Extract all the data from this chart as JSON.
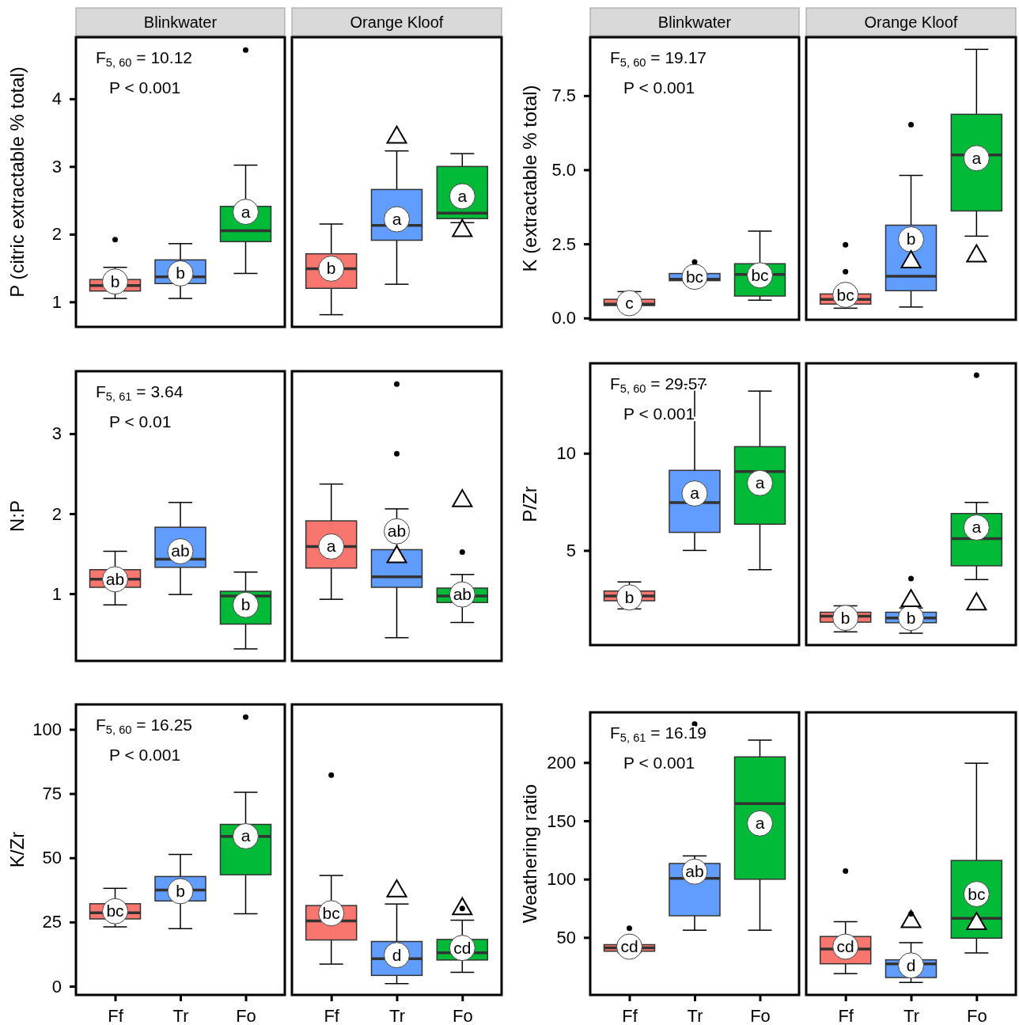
{
  "chart_data": [
    {
      "type": "box",
      "title": "Blinkwater",
      "ylabel": "P (citric extractable % total)",
      "categories": [
        "Ff",
        "Tr",
        "Fo"
      ],
      "colors": [
        "#f8766d",
        "#619cff",
        "#00ba38"
      ],
      "ylim": [
        0.63,
        4.91
      ],
      "yticks": [
        1,
        2,
        3,
        4
      ],
      "tick_labels": "y",
      "boxes": [
        {
          "low": 1.05,
          "q1": 1.16,
          "median": 1.24,
          "q3": 1.33,
          "high": 1.51,
          "outliers": [
            1.92
          ]
        },
        {
          "low": 1.05,
          "q1": 1.27,
          "median": 1.37,
          "q3": 1.62,
          "high": 1.86
        },
        {
          "low": 1.42,
          "q1": 1.89,
          "median": 2.05,
          "q3": 2.41,
          "high": 3.02,
          "outliers": [
            4.72
          ]
        }
      ],
      "annotations": [
        "F$_{5, 60}$ = 10.12",
        "P < 0.001",
        {
          "text": "b",
          "x": "Ff",
          "y": 1.3
        },
        {
          "text": "b",
          "x": "Tr",
          "y": 1.42
        },
        {
          "text": "a",
          "x": "Fo",
          "y": 2.33
        }
      ]
    },
    {
      "type": "box",
      "title": "Orange Kloof",
      "categories": [
        "Ff",
        "Tr",
        "Fo"
      ],
      "colors": [
        "#f8766d",
        "#619cff",
        "#00ba38"
      ],
      "ylim": [
        0.63,
        4.91
      ],
      "tick_labels": false,
      "boxes": [
        {
          "low": 0.81,
          "q1": 1.2,
          "median": 1.49,
          "q3": 1.71,
          "high": 2.15
        },
        {
          "low": 1.26,
          "q1": 1.91,
          "median": 2.13,
          "q3": 2.66,
          "high": 3.23
        },
        {
          "low": 2.17,
          "q1": 2.23,
          "median": 2.31,
          "q3": 3.0,
          "high": 3.19
        }
      ],
      "series": [
        {
          "type": "scatter",
          "marker": "triangle",
          "color": "#000000",
          "x": [
            "Tr",
            "Fo"
          ],
          "values": [
            3.43,
            2.05
          ]
        }
      ],
      "annotations": [
        {
          "text": "b",
          "x": "Ff",
          "y": 1.49
        },
        {
          "text": "a",
          "x": "Tr",
          "y": 2.22
        },
        {
          "text": "a",
          "x": "Fo",
          "y": 2.56
        }
      ]
    },
    {
      "type": "box",
      "title": "Blinkwater",
      "ylabel": "K (extractable % total)",
      "categories": [
        "Ff",
        "Tr",
        "Fo"
      ],
      "colors": [
        "#f8766d",
        "#619cff",
        "#00ba38"
      ],
      "ylim": [
        -0.06,
        9.47
      ],
      "yticks": [
        {
          "value": 0,
          "label": "0.0"
        },
        2.5,
        {
          "value": 5,
          "label": "5.0"
        },
        7.5
      ],
      "tick_labels": "y",
      "boxes": [
        {
          "low": 0.4,
          "q1": 0.42,
          "median": 0.47,
          "q3": 0.63,
          "high": 0.89
        },
        {
          "low": 1.2,
          "q1": 1.26,
          "median": 1.31,
          "q3": 1.5,
          "high": 1.55,
          "outliers": [
            1.89
          ]
        },
        {
          "low": 0.6,
          "q1": 0.74,
          "median": 1.47,
          "q3": 1.83,
          "high": 2.93
        }
      ],
      "annotations": [
        "F$_{5, 60}$ = 19.17",
        "P < 0.001",
        {
          "text": "c",
          "x": "Ff",
          "y": 0.5
        },
        {
          "text": "bc",
          "x": "Tr",
          "y": 1.39
        },
        {
          "text": "bc",
          "x": "Fo",
          "y": 1.44
        }
      ]
    },
    {
      "type": "box",
      "title": "Orange Kloof",
      "categories": [
        "Ff",
        "Tr",
        "Fo"
      ],
      "colors": [
        "#f8766d",
        "#619cff",
        "#00ba38"
      ],
      "ylim": [
        -0.06,
        9.47
      ],
      "tick_labels": false,
      "boxes": [
        {
          "low": 0.33,
          "q1": 0.47,
          "median": 0.63,
          "q3": 0.81,
          "high": 0.85,
          "outliers": [
            1.56,
            2.47
          ]
        },
        {
          "low": 0.37,
          "q1": 0.92,
          "median": 1.41,
          "q3": 3.13,
          "high": 4.81,
          "outliers": [
            6.52
          ]
        },
        {
          "low": 2.76,
          "q1": 3.61,
          "median": 5.5,
          "q3": 6.87,
          "high": 9.06
        }
      ],
      "series": [
        {
          "type": "scatter",
          "marker": "triangle",
          "color": "#000000",
          "x": [
            "Tr",
            "Fo"
          ],
          "values": [
            1.89,
            2.09
          ]
        }
      ],
      "annotations": [
        {
          "text": "bc",
          "x": "Ff",
          "y": 0.78
        },
        {
          "text": "b",
          "x": "Tr",
          "y": 2.65
        },
        {
          "text": "a",
          "x": "Fo",
          "y": 5.39
        }
      ]
    },
    {
      "type": "box",
      "ylabel": "N:P",
      "categories": [
        "Ff",
        "Tr",
        "Fo"
      ],
      "colors": [
        "#f8766d",
        "#619cff",
        "#00ba38"
      ],
      "ylim": [
        0.16,
        3.78
      ],
      "yticks": [
        1,
        2,
        3
      ],
      "tick_labels": "y",
      "boxes": [
        {
          "low": 0.86,
          "q1": 1.08,
          "median": 1.18,
          "q3": 1.3,
          "high": 1.53
        },
        {
          "low": 0.99,
          "q1": 1.33,
          "median": 1.43,
          "q3": 1.83,
          "high": 2.14
        },
        {
          "low": 0.31,
          "q1": 0.62,
          "median": 0.97,
          "q3": 1.03,
          "high": 1.27
        }
      ],
      "annotations": [
        "F$_{5, 61}$ = 3.64",
        "P < 0.01",
        {
          "text": "ab",
          "x": "Ff",
          "y": 1.18
        },
        {
          "text": "ab",
          "x": "Tr",
          "y": 1.53
        },
        {
          "text": "b",
          "x": "Fo",
          "y": 0.86
        }
      ]
    },
    {
      "type": "box",
      "categories": [
        "Ff",
        "Tr",
        "Fo"
      ],
      "colors": [
        "#f8766d",
        "#619cff",
        "#00ba38"
      ],
      "ylim": [
        0.16,
        3.78
      ],
      "tick_labels": false,
      "boxes": [
        {
          "low": 0.93,
          "q1": 1.32,
          "median": 1.59,
          "q3": 1.91,
          "high": 2.37
        },
        {
          "low": 0.45,
          "q1": 1.08,
          "median": 1.21,
          "q3": 1.55,
          "high": 2.06,
          "outliers": [
            2.75,
            3.62
          ]
        },
        {
          "low": 0.64,
          "q1": 0.89,
          "median": 0.97,
          "q3": 1.07,
          "high": 1.24,
          "outliers": [
            1.52
          ]
        }
      ],
      "series": [
        {
          "type": "scatter",
          "marker": "triangle",
          "color": "#000000",
          "x": [
            "Tr",
            "Fo"
          ],
          "values": [
            1.46,
            2.16
          ]
        }
      ],
      "annotations": [
        {
          "text": "a",
          "x": "Ff",
          "y": 1.59
        },
        {
          "text": "ab",
          "x": "Tr",
          "y": 1.78
        },
        {
          "text": "ab",
          "x": "Fo",
          "y": 0.99
        }
      ]
    },
    {
      "type": "box",
      "ylabel": "P/Zr",
      "categories": [
        "Ff",
        "Tr",
        "Fo"
      ],
      "colors": [
        "#f8766d",
        "#619cff",
        "#00ba38"
      ],
      "ylim": [
        0.13,
        14.63
      ],
      "yticks": [
        5,
        10
      ],
      "tick_labels": "y",
      "boxes": [
        {
          "low": 1.99,
          "q1": 2.41,
          "median": 2.66,
          "q3": 2.91,
          "high": 3.38
        },
        {
          "low": 5.0,
          "q1": 5.93,
          "median": 7.46,
          "q3": 9.12,
          "high": 13.54
        },
        {
          "low": 4.01,
          "q1": 6.35,
          "median": 9.06,
          "q3": 10.34,
          "high": 13.2
        }
      ],
      "annotations": [
        "F$_{5, 60}$ = 29.57",
        "P < 0.001",
        {
          "text": "b",
          "x": "Ff",
          "y": 2.58
        },
        {
          "text": "a",
          "x": "Tr",
          "y": 7.93
        },
        {
          "text": "a",
          "x": "Fo",
          "y": 8.47
        }
      ]
    },
    {
      "type": "box",
      "categories": [
        "Ff",
        "Tr",
        "Fo"
      ],
      "colors": [
        "#f8766d",
        "#619cff",
        "#00ba38"
      ],
      "ylim": [
        0.13,
        14.63
      ],
      "tick_labels": false,
      "boxes": [
        {
          "low": 0.81,
          "q1": 1.31,
          "median": 1.62,
          "q3": 1.82,
          "high": 2.15
        },
        {
          "low": 0.74,
          "q1": 1.28,
          "median": 1.53,
          "q3": 1.82,
          "high": 2.04,
          "outliers": [
            3.55
          ]
        },
        {
          "low": 3.5,
          "q1": 4.21,
          "median": 5.61,
          "q3": 6.9,
          "high": 7.47,
          "outliers": [
            14.02
          ]
        }
      ],
      "series": [
        {
          "type": "scatter",
          "marker": "triangle",
          "color": "#000000",
          "x": [
            "Tr",
            "Fo"
          ],
          "values": [
            2.41,
            2.24
          ]
        }
      ],
      "annotations": [
        {
          "text": "b",
          "x": "Ff",
          "y": 1.53
        },
        {
          "text": "b",
          "x": "Tr",
          "y": 1.53
        },
        {
          "text": "a",
          "x": "Fo",
          "y": 6.18
        }
      ]
    },
    {
      "type": "box",
      "ylabel": "K/Zr",
      "categories": [
        "Ff",
        "Tr",
        "Fo"
      ],
      "colors": [
        "#f8766d",
        "#619cff",
        "#00ba38"
      ],
      "ylim": [
        -3.4,
        109.7
      ],
      "yticks": [
        0,
        25,
        50,
        75,
        100
      ],
      "boxes": [
        {
          "low": 23.1,
          "q1": 26.2,
          "median": 28.6,
          "q3": 32.1,
          "high": 38.1
        },
        {
          "low": 22.4,
          "q1": 33.2,
          "median": 37.4,
          "q3": 42.7,
          "high": 51.3
        },
        {
          "low": 28.2,
          "q1": 43.4,
          "median": 58.3,
          "q3": 63.0,
          "high": 75.5,
          "outliers": [
            104.8
          ]
        }
      ],
      "annotations": [
        "F$_{5, 60}$ = 16.25",
        "P < 0.001",
        {
          "text": "bc",
          "x": "Ff",
          "y": 29.2
        },
        {
          "text": "b",
          "x": "Tr",
          "y": 37
        },
        {
          "text": "a",
          "x": "Fo",
          "y": 58.4
        }
      ]
    },
    {
      "type": "box",
      "categories": [
        "Ff",
        "Tr",
        "Fo"
      ],
      "colors": [
        "#f8766d",
        "#619cff",
        "#00ba38"
      ],
      "ylim": [
        -3.4,
        109.7
      ],
      "tick_labels": "x",
      "boxes": [
        {
          "low": 8.6,
          "q1": 18.0,
          "median": 25.4,
          "q3": 31.4,
          "high": 43.1,
          "outliers": [
            82.2
          ]
        },
        {
          "low": 1.0,
          "q1": 4.2,
          "median": 10.7,
          "q3": 17.4,
          "high": 32.0
        },
        {
          "low": 5.4,
          "q1": 10.2,
          "median": 13.0,
          "q3": 18.2,
          "high": 25.7,
          "outliers": [
            30.3
          ]
        }
      ],
      "series": [
        {
          "type": "scatter",
          "marker": "triangle",
          "color": "#000000",
          "x": [
            "Tr",
            "Fo"
          ],
          "values": [
            37,
            30.1
          ]
        }
      ],
      "annotations": [
        {
          "text": "bc",
          "x": "Ff",
          "y": 28.4
        },
        {
          "text": "d",
          "x": "Tr",
          "y": 12.1
        },
        {
          "text": "cd",
          "x": "Fo",
          "y": 14.9
        }
      ]
    },
    {
      "type": "box",
      "ylabel": "Weathering ratio",
      "categories": [
        "Ff",
        "Tr",
        "Fo"
      ],
      "colors": [
        "#f8766d",
        "#619cff",
        "#00ba38"
      ],
      "ylim": [
        0.7,
        243
      ],
      "yticks": [
        50,
        100,
        150,
        200
      ],
      "boxes": [
        {
          "low": 37,
          "q1": 38.2,
          "median": 41,
          "q3": 43.8,
          "high": 45,
          "outliers": [
            57.9
          ]
        },
        {
          "low": 56.2,
          "q1": 68.6,
          "median": 100.7,
          "q3": 113.4,
          "high": 119.9,
          "outliers": [
            233
          ]
        },
        {
          "low": 56.2,
          "q1": 99.9,
          "median": 164.7,
          "q3": 204.8,
          "high": 219.2
        }
      ],
      "annotations": [
        "F$_{5, 61}$ = 16.19",
        "P < 0.001",
        {
          "text": "cd",
          "x": "Ff",
          "y": 42.1
        },
        {
          "text": "ab",
          "x": "Tr",
          "y": 106.4
        },
        {
          "text": "a",
          "x": "Fo",
          "y": 147.8
        }
      ]
    },
    {
      "type": "box",
      "categories": [
        "Ff",
        "Tr",
        "Fo"
      ],
      "colors": [
        "#f8766d",
        "#619cff",
        "#00ba38"
      ],
      "ylim": [
        0.7,
        243
      ],
      "tick_labels": "x",
      "boxes": [
        {
          "low": 19,
          "q1": 27.4,
          "median": 40.1,
          "q3": 50.8,
          "high": 63.5,
          "outliers": [
            107
          ]
        },
        {
          "low": 11.4,
          "q1": 15.6,
          "median": 27.4,
          "q3": 30.8,
          "high": 45.5,
          "outliers": [
            70.3
          ]
        },
        {
          "low": 36.7,
          "q1": 49.4,
          "median": 66.4,
          "q3": 116,
          "high": 199.4
        }
      ],
      "series": [
        {
          "type": "scatter",
          "marker": "triangle",
          "color": "#000000",
          "x": [
            "Tr",
            "Fo"
          ],
          "values": [
            63.5,
            61.8
          ]
        }
      ],
      "annotations": [
        {
          "text": "cd",
          "x": "Ff",
          "y": 42.1
        },
        {
          "text": "d",
          "x": "Tr",
          "y": 26
        },
        {
          "text": "bc",
          "x": "Fo",
          "y": 87.2
        }
      ]
    }
  ]
}
